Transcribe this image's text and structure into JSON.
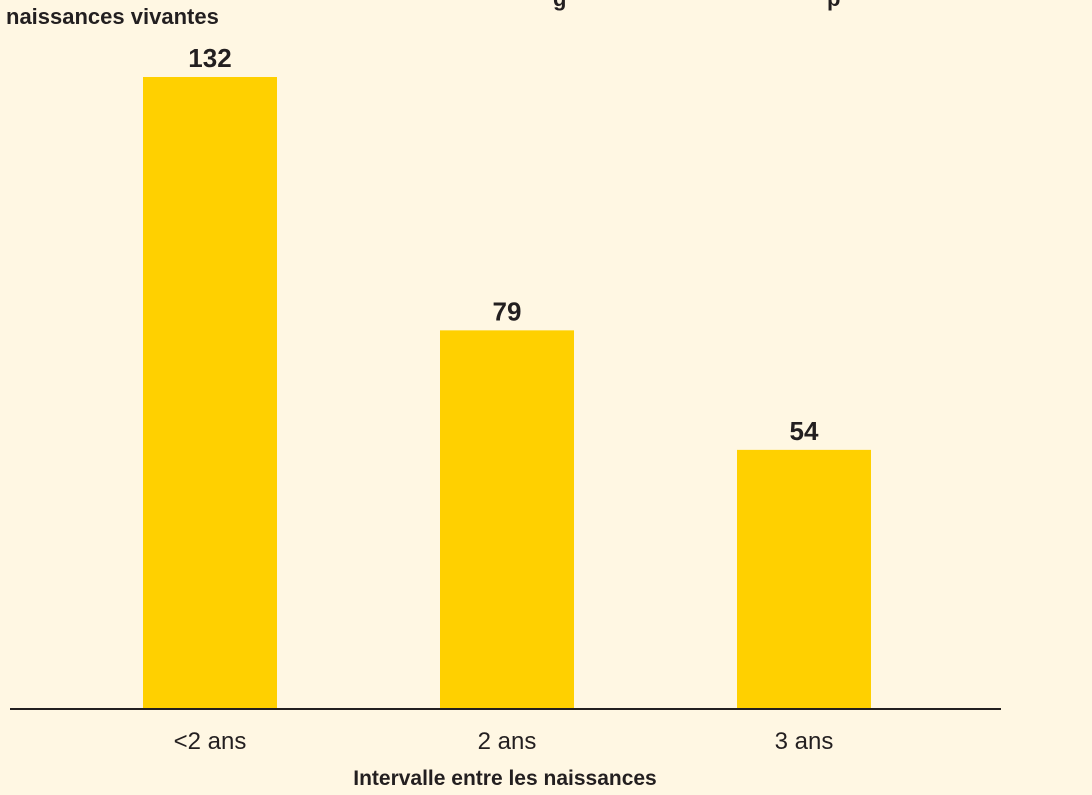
{
  "chart_data": {
    "type": "bar",
    "ylabel": "naissances vivantes",
    "title_fragment": "g p",
    "xlabel": "Intervalle entre les naissances",
    "categories": [
      "<2 ans",
      "2 ans",
      "3 ans"
    ],
    "values": [
      132,
      79,
      54
    ],
    "data_labels": [
      "132",
      "79",
      "54"
    ],
    "ylim": [
      0,
      132
    ],
    "grid": false,
    "colors": {
      "bar": "#ffd000",
      "background": "#fff7e3",
      "axis": "#231f20",
      "text": "#231f20"
    }
  }
}
